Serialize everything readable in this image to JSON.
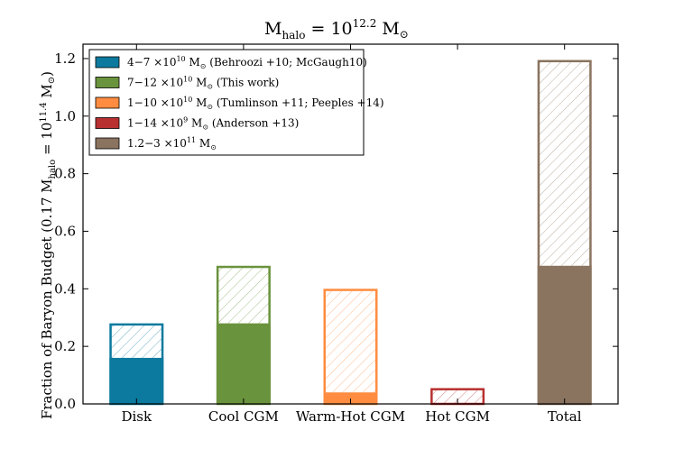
{
  "chart_data": {
    "type": "bar",
    "title": "M_halo = 10^12.2 M_sun",
    "title_parts": {
      "base": "M",
      "sub": "halo",
      "eq": " = 10",
      "exp": "12.2",
      "unit": " M",
      "sun": "⊙"
    },
    "xlabel": "",
    "ylabel": "Fraction of Baryon Budget (0.17 M_halo = 10^11.4 M_sun)",
    "ylabel_parts": {
      "pre": "Fraction of Baryon Budget (0.17 M",
      "sub": "halo",
      "mid": " = 10",
      "exp": "11.4",
      "unit": " M",
      "sun": "⊙",
      "post": ")"
    },
    "ylim": [
      0.0,
      1.25
    ],
    "yticks": [
      "0.0",
      "0.2",
      "0.4",
      "0.6",
      "0.8",
      "1.0",
      "1.2"
    ],
    "categories": [
      "Disk",
      "Cool CGM",
      "Warm-Hot CGM",
      "Hot CGM",
      "Total"
    ],
    "bars": [
      {
        "category": "Disk",
        "min": 0.16,
        "max": 0.28,
        "color": "#0c7a9e"
      },
      {
        "category": "Cool CGM",
        "min": 0.28,
        "max": 0.48,
        "color": "#6a933d"
      },
      {
        "category": "Warm-Hot CGM",
        "min": 0.04,
        "max": 0.4,
        "color": "#ff8c40"
      },
      {
        "category": "Hot CGM",
        "min": 0.0,
        "max": 0.055,
        "color": "#b83030"
      },
      {
        "category": "Total",
        "min": 0.48,
        "max": 1.195,
        "color": "#8a735f"
      }
    ],
    "legend": {
      "placement": "top-left",
      "entries": [
        {
          "color": "#0c7a9e",
          "text": "4−7 ×10^10 M_sun (Behroozi+10; McGaugh10)",
          "range": "4−7",
          "exp": "10",
          "note": "(Behroozi +10; McGaugh10)"
        },
        {
          "color": "#6a933d",
          "text": "7−12 ×10^10 M_sun (This work)",
          "range": "7−12",
          "exp": "10",
          "note": "(This work)"
        },
        {
          "color": "#ff8c40",
          "text": "1−10 ×10^10 M_sun (Tumlinson+11; Peeples+14)",
          "range": "1−10",
          "exp": "10",
          "note": "(Tumlinson +11; Peeples +14)"
        },
        {
          "color": "#b83030",
          "text": "1−14 ×10^9 M_sun (Anderson+13)",
          "range": "1−14",
          "exp": "9",
          "note": "(Anderson +13)"
        },
        {
          "color": "#8a735f",
          "text": "1.2−3 ×10^11 M_sun",
          "range": "1.2−3",
          "exp": "11",
          "note": ""
        }
      ]
    }
  }
}
